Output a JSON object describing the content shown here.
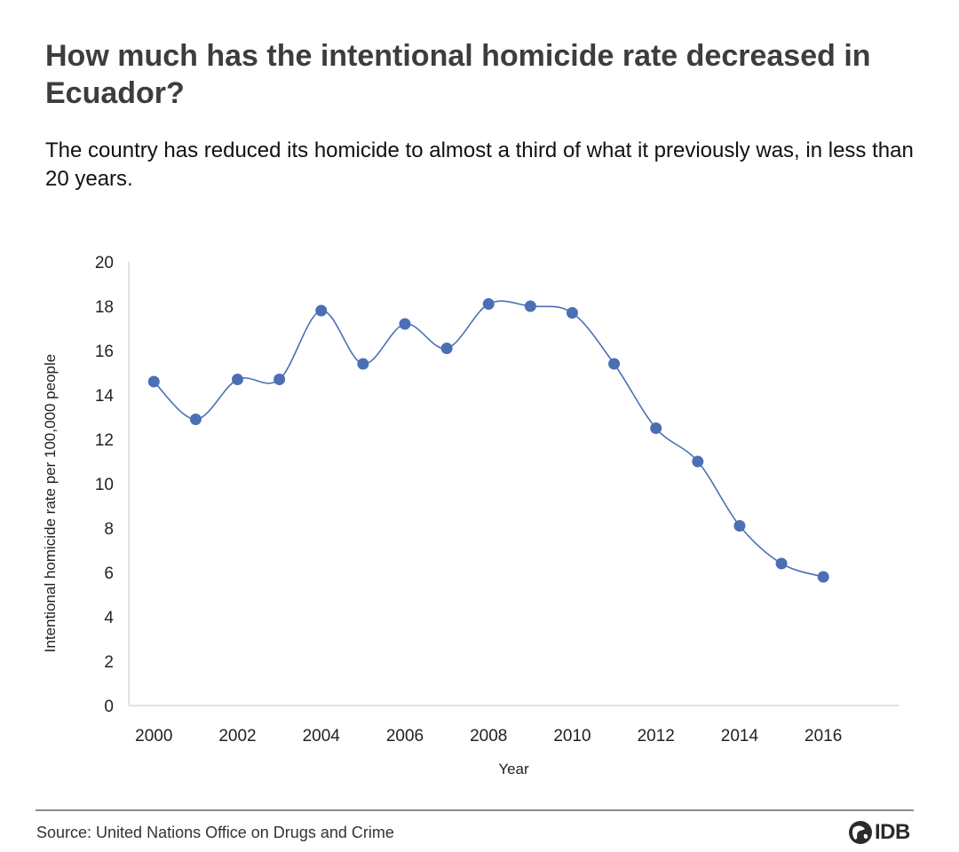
{
  "header": {
    "title": "How much has the intentional homicide rate decreased in Ecuador?",
    "subtitle": "The country has reduced its homicide to almost a third of what it previously was, in less than 20 years."
  },
  "chart_data": {
    "type": "line",
    "title": "How much has the intentional homicide rate decreased in Ecuador?",
    "subtitle": "The country has reduced its homicide to almost a third of what it previously was, in less than 20 years.",
    "xlabel": "Year",
    "ylabel": "Intentional homicide rate per 100,000 people",
    "x": [
      2000,
      2001,
      2002,
      2003,
      2004,
      2005,
      2006,
      2007,
      2008,
      2009,
      2010,
      2011,
      2012,
      2013,
      2014,
      2015,
      2016
    ],
    "series": [
      {
        "values": [
          14.6,
          12.9,
          14.7,
          14.7,
          17.8,
          15.4,
          17.2,
          16.1,
          18.1,
          18.0,
          17.7,
          15.4,
          12.5,
          11.0,
          8.1,
          6.4,
          5.8
        ]
      }
    ],
    "xticks": [
      "2000",
      "2002",
      "2004",
      "2006",
      "2008",
      "2010",
      "2012",
      "2014",
      "2016"
    ],
    "yticks": [
      "0",
      "2",
      "4",
      "6",
      "8",
      "10",
      "12",
      "14",
      "16",
      "18",
      "20"
    ],
    "xlim": [
      1999.4,
      2017.8
    ],
    "ylim": [
      0,
      20
    ],
    "grid": false,
    "legend": "none",
    "colors": {
      "line": "#4a6fb5",
      "marker": "#4a6fb5",
      "axis": "#d0d0d0"
    },
    "smooth": true
  },
  "footer": {
    "source": "Source: United Nations Office on Drugs and Crime",
    "logo_text": "IDB"
  }
}
